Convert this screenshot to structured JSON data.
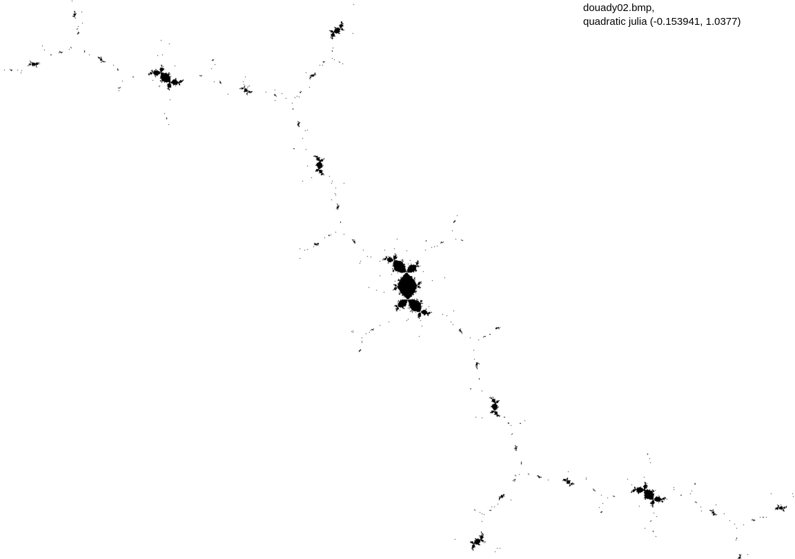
{
  "caption": {
    "filename": "douady02.bmp,",
    "description": "quadratic julia (-0.153941, 1.0377)"
  },
  "fractal": {
    "type": "quadratic julia",
    "c_real": -0.153941,
    "c_imag": 1.0377,
    "fill_color": "#000000",
    "background_color": "#ffffff"
  }
}
